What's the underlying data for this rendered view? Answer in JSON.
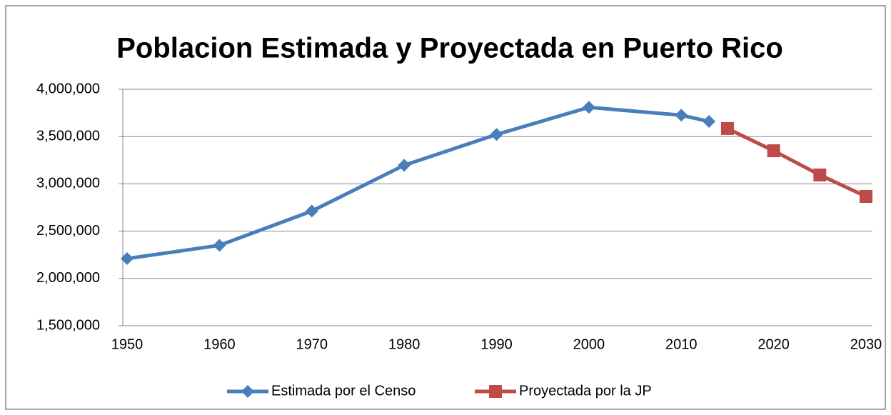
{
  "chart_data": {
    "type": "line",
    "title": "Poblacion Estimada y Proyectada en Puerto Rico",
    "series": [
      {
        "name": "Estimada  por el Censo",
        "color": "#4a7ebb",
        "marker": "diamond",
        "x": [
          1950,
          1960,
          1970,
          1980,
          1990,
          2000,
          2010,
          2013
        ],
        "values": [
          2210000,
          2350000,
          2712000,
          3197000,
          3522000,
          3809000,
          3726000,
          3660000
        ]
      },
      {
        "name": "Proyectada por la JP",
        "color": "#be4b48",
        "marker": "square",
        "x": [
          2015,
          2020,
          2025,
          2030
        ],
        "values": [
          3585000,
          3350000,
          3094000,
          2867000
        ]
      }
    ],
    "xlim": [
      1950,
      2030
    ],
    "xticks": [
      1950,
      1960,
      1970,
      1980,
      1990,
      2000,
      2010,
      2020,
      2030
    ],
    "ylim": [
      1500000,
      4000000
    ],
    "yticks": [
      {
        "value": 1500000,
        "label": "1,500,000"
      },
      {
        "value": 2000000,
        "label": "2,000,000"
      },
      {
        "value": 2500000,
        "label": "2,500,000"
      },
      {
        "value": 3000000,
        "label": "3,000,000"
      },
      {
        "value": 3500000,
        "label": "3,500,000"
      },
      {
        "value": 4000000,
        "label": "4,000,000"
      }
    ],
    "grid": true,
    "legend": "bottom"
  }
}
